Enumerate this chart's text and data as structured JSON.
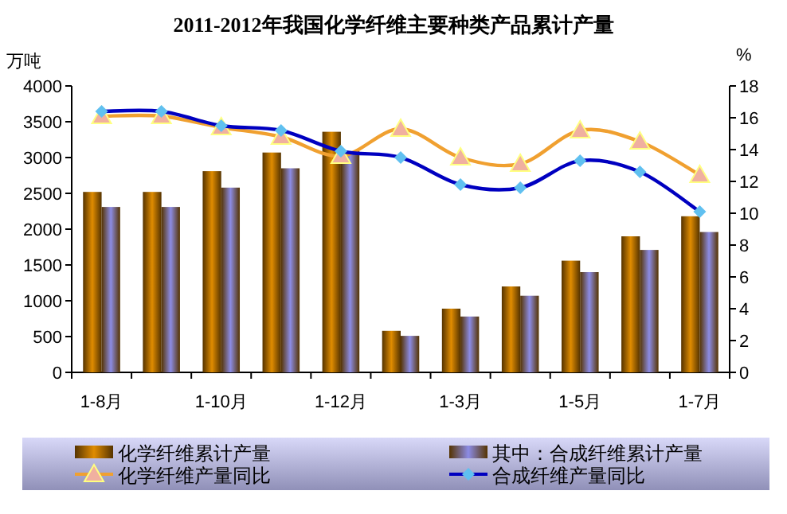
{
  "chart_data": {
    "type": "bar",
    "title": "2011-2012年我国化学纤维主要种类产品累计产量",
    "ylabel": "万吨",
    "y2label": "%",
    "categories": [
      "1-8月",
      null,
      "1-10月",
      null,
      "1-12月",
      null,
      "1-3月",
      null,
      "1-5月",
      null,
      "1-7月"
    ],
    "ylim": [
      0,
      4000
    ],
    "yticks": [
      0,
      500,
      1000,
      1500,
      2000,
      2500,
      3000,
      3500,
      4000
    ],
    "y2lim": [
      0,
      18
    ],
    "y2ticks": [
      0,
      2,
      4,
      6,
      8,
      10,
      12,
      14,
      16,
      18
    ],
    "legend": "bottom",
    "series": [
      {
        "name": "化学纤维累计产量",
        "color": "#e08c00",
        "values": [
          2520,
          2520,
          2810,
          3070,
          3360,
          580,
          890,
          1200,
          1560,
          1900,
          2180
        ]
      },
      {
        "name": "其中：合成纤维累计产量",
        "color": "#8c8ce6",
        "values": [
          2310,
          2310,
          2580,
          2850,
          3090,
          510,
          780,
          1070,
          1400,
          1710,
          1960
        ]
      },
      {
        "name": "化学纤维产量同比",
        "type": "line",
        "axis": "y2",
        "marker": "triangle",
        "color": "#f0a030",
        "values": [
          16.1,
          16.1,
          15.4,
          14.8,
          13.6,
          15.3,
          13.5,
          13.1,
          15.2,
          14.5,
          12.4
        ]
      },
      {
        "name": "合成纤维产量同比",
        "type": "line",
        "axis": "y2",
        "marker": "diamond",
        "color": "#0000c0",
        "values": [
          16.4,
          16.4,
          15.5,
          15.2,
          13.9,
          13.5,
          11.8,
          11.6,
          13.3,
          12.6,
          10.1
        ]
      }
    ]
  }
}
